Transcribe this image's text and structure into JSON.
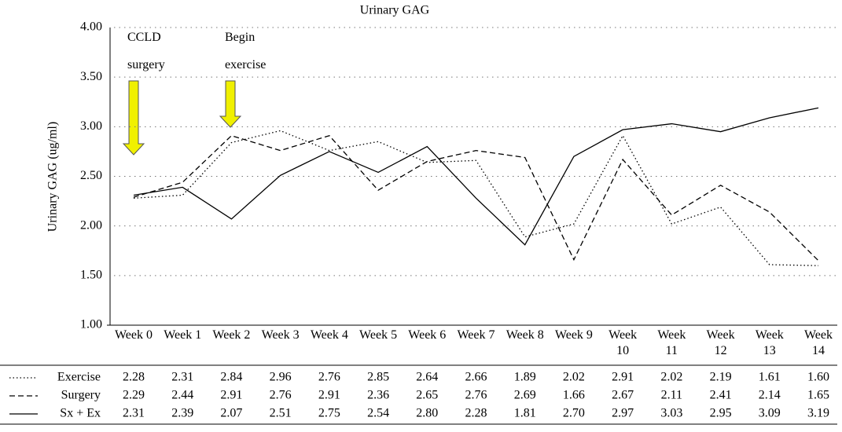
{
  "chart_data": {
    "type": "line",
    "title": "Urinary GAG",
    "y_label": "Urinary GAG (ug/ml)",
    "annotations": [
      "CCLD surgery",
      "Begin exercise"
    ],
    "categories": [
      "Week 0",
      "Week 1",
      "Week 2",
      "Week 3",
      "Week 4",
      "Week 5",
      "Week 6",
      "Week 7",
      "Week 8",
      "Week 9",
      "Week 10",
      "Week 11",
      "Week 12",
      "Week 13",
      "Week 14"
    ],
    "ylim": [
      1.0,
      4.0
    ],
    "yticks": [
      {
        "value": 1.0,
        "label": "1.00"
      },
      {
        "value": 1.5,
        "label": "1.50"
      },
      {
        "value": 2.0,
        "label": "2.00"
      },
      {
        "value": 2.5,
        "label": "2.50"
      },
      {
        "value": 3.0,
        "label": "3.00"
      },
      {
        "value": 3.5,
        "label": "3.50"
      },
      {
        "value": 4.0,
        "label": "4.00"
      }
    ],
    "grid": true,
    "series": [
      {
        "name": "Exercise",
        "color": "#000000",
        "style": "dotted",
        "values": [
          2.28,
          2.31,
          2.84,
          2.96,
          2.76,
          2.85,
          2.64,
          2.66,
          1.89,
          2.02,
          2.91,
          2.02,
          2.19,
          1.61,
          1.6
        ],
        "value_labels": [
          "2.28",
          "2.31",
          "2.84",
          "2.96",
          "2.76",
          "2.85",
          "2.64",
          "2.66",
          "1.89",
          "2.02",
          "2.91",
          "2.02",
          "2.19",
          "1.61",
          "1.60"
        ]
      },
      {
        "name": "Surgery",
        "color": "#000000",
        "style": "dashed",
        "values": [
          2.29,
          2.44,
          2.91,
          2.76,
          2.91,
          2.36,
          2.65,
          2.76,
          2.69,
          1.66,
          2.67,
          2.11,
          2.41,
          2.14,
          1.65
        ],
        "value_labels": [
          "2.29",
          "2.44",
          "2.91",
          "2.76",
          "2.91",
          "2.36",
          "2.65",
          "2.76",
          "2.69",
          "1.66",
          "2.67",
          "2.11",
          "2.41",
          "2.14",
          "1.65"
        ]
      },
      {
        "name": "Sx + Ex",
        "color": "#000000",
        "style": "solid",
        "values": [
          2.31,
          2.39,
          2.07,
          2.51,
          2.75,
          2.54,
          2.8,
          2.28,
          1.81,
          2.7,
          2.97,
          3.03,
          2.95,
          3.09,
          3.19
        ],
        "value_labels": [
          "2.31",
          "2.39",
          "2.07",
          "2.51",
          "2.75",
          "2.54",
          "2.80",
          "2.28",
          "1.81",
          "2.70",
          "2.97",
          "3.03",
          "2.95",
          "3.09",
          "3.19"
        ]
      }
    ]
  }
}
